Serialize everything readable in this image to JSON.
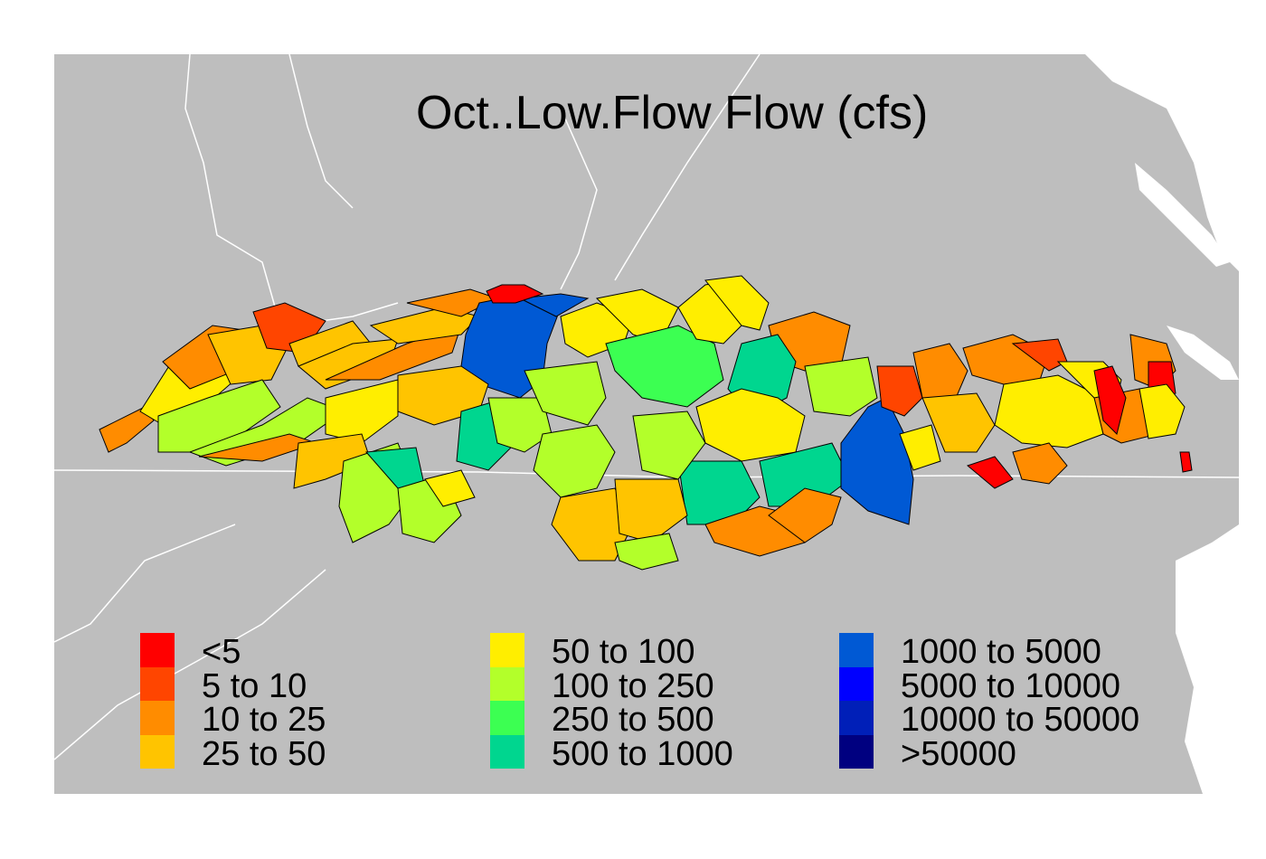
{
  "title": "Oct..Low.Flow Flow (cfs)",
  "legend": {
    "columns": [
      [
        {
          "label": "<5",
          "color": "#ff0000"
        },
        {
          "label": "5 to 10",
          "color": "#ff4500"
        },
        {
          "label": "10 to 25",
          "color": "#ff8c00"
        },
        {
          "label": "25 to 50",
          "color": "#ffc400"
        }
      ],
      [
        {
          "label": "50 to 100",
          "color": "#ffee00"
        },
        {
          "label": "100 to 250",
          "color": "#b3ff2a"
        },
        {
          "label": "250 to 500",
          "color": "#3cff52"
        },
        {
          "label": "500 to 1000",
          "color": "#00d68f"
        }
      ],
      [
        {
          "label": "1000 to 5000",
          "color": "#0059d4"
        },
        {
          "label": "5000 to 10000",
          "color": "#0000ff"
        },
        {
          "label": "10000 to 50000",
          "color": "#001fb8"
        },
        {
          "label": ">50000",
          "color": "#000080"
        }
      ]
    ]
  },
  "colors": {
    "background": "#bebebe",
    "water": "#ffffff",
    "border": "#ffffff",
    "outline": "#000000"
  }
}
